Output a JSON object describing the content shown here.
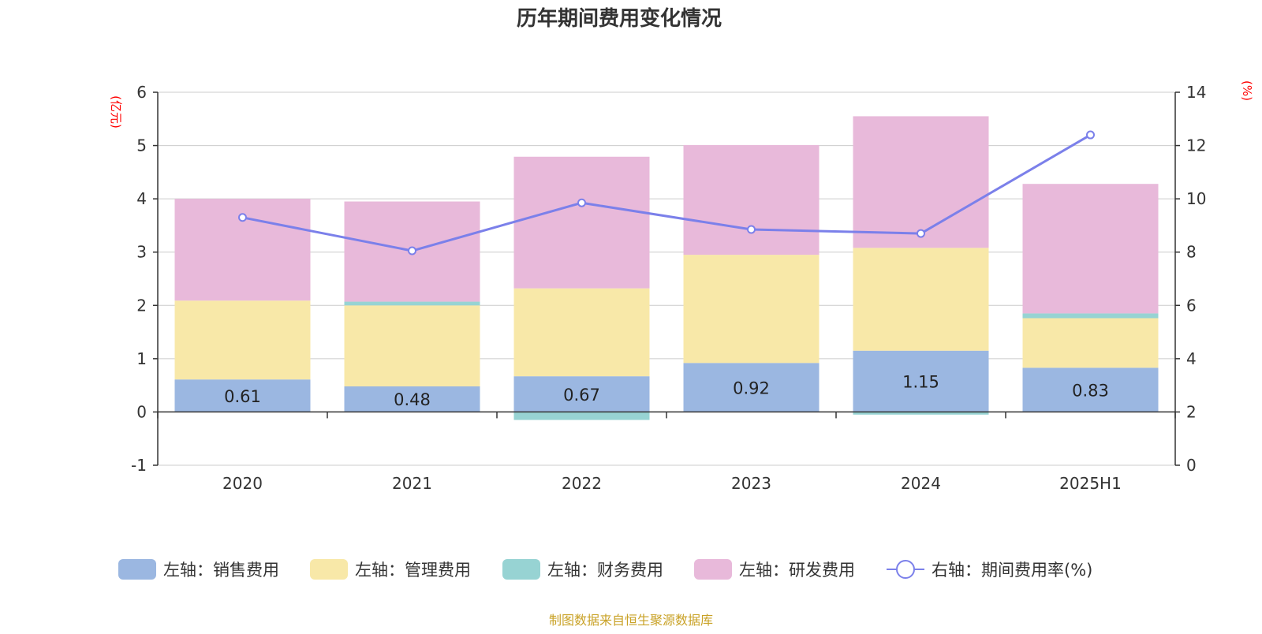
{
  "chart_data": {
    "type": "bar",
    "title": "历年期间费用变化情况",
    "categories": [
      "2020",
      "2021",
      "2022",
      "2023",
      "2024",
      "2025H1"
    ],
    "left_axis": {
      "unit": "(亿元)",
      "min": -1,
      "max": 6,
      "ticks": [
        "-1",
        "0",
        "1",
        "2",
        "3",
        "4",
        "5",
        "6"
      ]
    },
    "right_axis": {
      "unit": "(%)",
      "min": 0,
      "max": 14,
      "ticks": [
        "0",
        "2",
        "4",
        "6",
        "8",
        "10",
        "12",
        "14"
      ]
    },
    "series": [
      {
        "name": "左轴：销售费用",
        "axis": "left",
        "color": "#9bb7e1",
        "values": [
          0.61,
          0.48,
          0.67,
          0.92,
          1.15,
          0.83
        ],
        "labels": [
          "0.61",
          "0.48",
          "0.67",
          "0.92",
          "1.15",
          "0.83"
        ]
      },
      {
        "name": "左轴：管理费用",
        "axis": "left",
        "color": "#f8e8a8",
        "values": [
          1.48,
          1.52,
          1.65,
          2.03,
          1.93,
          0.93
        ]
      },
      {
        "name": "左轴：财务费用",
        "axis": "left",
        "color": "#97d3d3",
        "values": [
          0.0,
          0.07,
          -0.15,
          0.0,
          -0.05,
          0.09
        ]
      },
      {
        "name": "左轴：研发费用",
        "axis": "left",
        "color": "#e8b9da",
        "values": [
          1.91,
          1.88,
          2.47,
          2.06,
          2.47,
          2.43
        ]
      },
      {
        "name": "右轴：期间费用率(%)",
        "axis": "right",
        "type": "line",
        "color": "#7b80ea",
        "values": [
          9.3,
          8.05,
          9.85,
          8.85,
          8.7,
          12.4
        ]
      }
    ],
    "grid": true,
    "legend_position": "bottom"
  },
  "source_text": "制图数据来自恒生聚源数据库"
}
